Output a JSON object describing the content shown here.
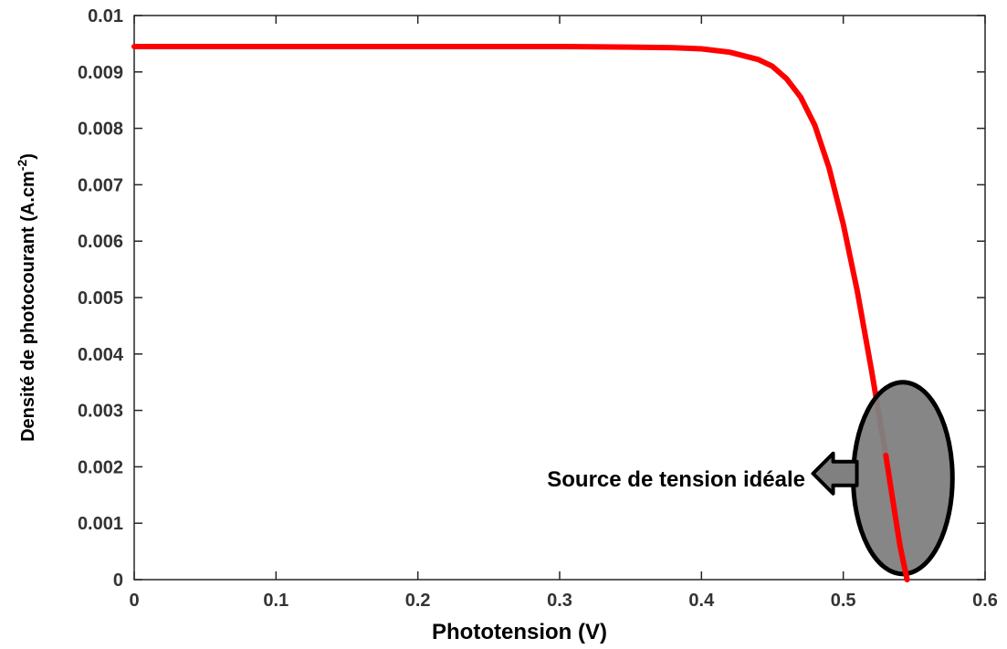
{
  "chart_data": {
    "type": "line",
    "xlabel": "Phototension (V)",
    "ylabel": {
      "main": "Densité de photocourant (A.cm",
      "superscript": "-2",
      "close": ")"
    },
    "xlim": [
      0,
      0.6
    ],
    "ylim": [
      0,
      0.01
    ],
    "x_ticks": [
      "0",
      "0.1",
      "0.2",
      "0.3",
      "0.4",
      "0.5",
      "0.6"
    ],
    "y_ticks": [
      "0",
      "0.001",
      "0.002",
      "0.003",
      "0.004",
      "0.005",
      "0.006",
      "0.007",
      "0.008",
      "0.009",
      "0.01"
    ],
    "grid": false,
    "series": [
      {
        "color": "#ff0000",
        "x": [
          0,
          0.1,
          0.2,
          0.3,
          0.35,
          0.38,
          0.4,
          0.42,
          0.44,
          0.45,
          0.46,
          0.47,
          0.48,
          0.49,
          0.5,
          0.51,
          0.52,
          0.53,
          0.535,
          0.54,
          0.545
        ],
        "y": [
          0.00945,
          0.00945,
          0.00945,
          0.00945,
          0.00944,
          0.00943,
          0.00941,
          0.00935,
          0.00922,
          0.0091,
          0.00888,
          0.00855,
          0.00805,
          0.0073,
          0.0063,
          0.0051,
          0.0037,
          0.0022,
          0.0014,
          0.0006,
          0.0
        ]
      }
    ],
    "annotation": {
      "text": "Source de tension idéale",
      "ellipse": {
        "cx": 0.542,
        "cy": 0.0018,
        "rx": 0.035,
        "ry": 0.0017,
        "fill": "#808080"
      }
    }
  }
}
